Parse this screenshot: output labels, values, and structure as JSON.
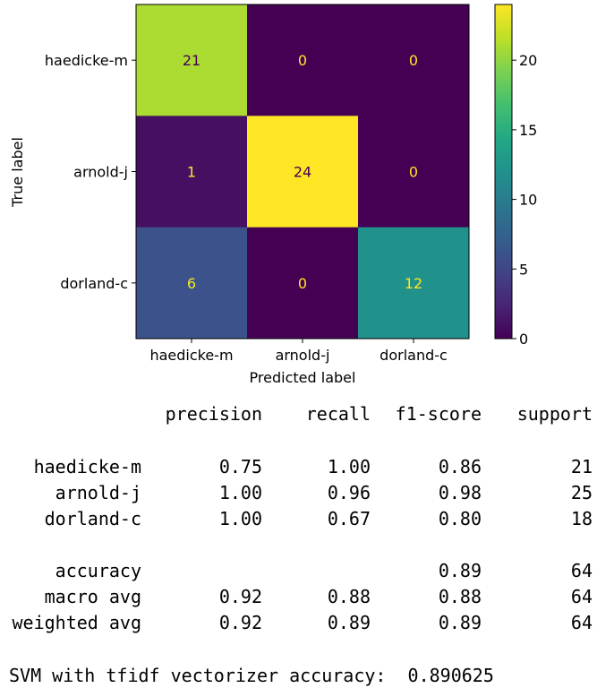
{
  "chart_data": {
    "type": "heatmap",
    "title": "",
    "xlabel": "Predicted label",
    "ylabel": "True label",
    "x_categories": [
      "haedicke-m",
      "arnold-j",
      "dorland-c"
    ],
    "y_categories": [
      "haedicke-m",
      "arnold-j",
      "dorland-c"
    ],
    "values": [
      [
        21,
        0,
        0
      ],
      [
        1,
        24,
        0
      ],
      [
        6,
        0,
        12
      ]
    ],
    "colorscale": "viridis",
    "colorbar": {
      "range": [
        0,
        24
      ],
      "ticks": [
        0,
        5,
        10,
        15,
        20
      ]
    },
    "grid": false
  },
  "report": {
    "headers": [
      "precision",
      "recall",
      "f1-score",
      "support"
    ],
    "rows": [
      {
        "label": "haedicke-m",
        "precision": "0.75",
        "recall": "1.00",
        "f1": "0.86",
        "support": "21"
      },
      {
        "label": "arnold-j",
        "precision": "1.00",
        "recall": "0.96",
        "f1": "0.98",
        "support": "25"
      },
      {
        "label": "dorland-c",
        "precision": "1.00",
        "recall": "0.67",
        "f1": "0.80",
        "support": "18"
      }
    ],
    "summary_rows": [
      {
        "label": "accuracy",
        "precision": "",
        "recall": "",
        "f1": "0.89",
        "support": "64"
      },
      {
        "label": "macro avg",
        "precision": "0.92",
        "recall": "0.88",
        "f1": "0.88",
        "support": "64"
      },
      {
        "label": "weighted avg",
        "precision": "0.92",
        "recall": "0.89",
        "f1": "0.89",
        "support": "64"
      }
    ]
  },
  "summary": {
    "label": "SVM with tfidf vectorizer accuracy:",
    "value": "0.890625"
  }
}
